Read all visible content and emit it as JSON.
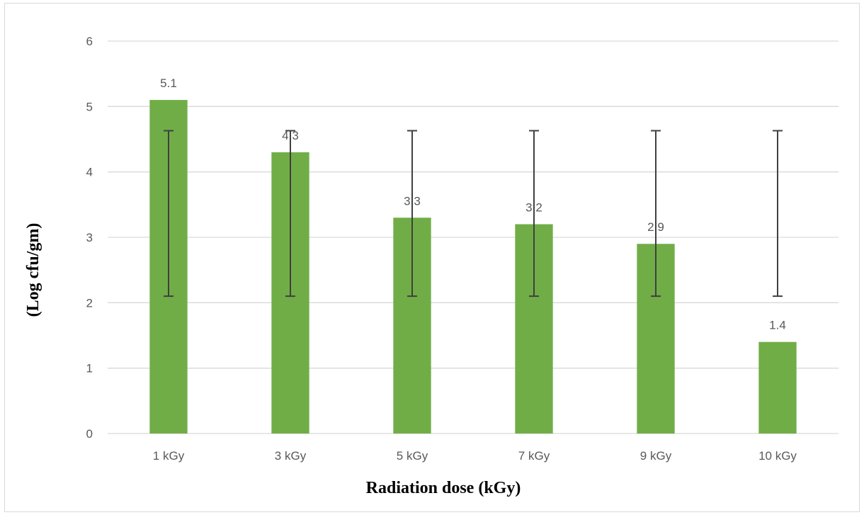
{
  "chart_data": {
    "type": "bar",
    "title": "",
    "xlabel": "Radiation dose (kGy)",
    "ylabel": "(Log cfu/gm)",
    "categories": [
      "1 kGy",
      "3 kGy",
      "5 kGy",
      "7 kGy",
      "9 kGy",
      "10 kGy"
    ],
    "values": [
      5.1,
      4.3,
      3.3,
      3.2,
      2.9,
      1.4
    ],
    "data_labels": [
      "5.1",
      "4.3",
      "3.3",
      "3.2",
      "2.9",
      "1.4"
    ],
    "error_bars": [
      {
        "low": 2.1,
        "high": 4.63
      },
      {
        "low": 2.1,
        "high": 4.63
      },
      {
        "low": 2.1,
        "high": 4.63
      },
      {
        "low": 2.1,
        "high": 4.63
      },
      {
        "low": 2.1,
        "high": 4.63
      },
      {
        "low": 2.1,
        "high": 4.63
      }
    ],
    "ylim": [
      0,
      6
    ],
    "yticks": [
      0,
      1,
      2,
      3,
      4,
      5,
      6
    ],
    "grid": true,
    "legend": "none",
    "bar_color": "#70ad47",
    "error_bar_color": "#404040",
    "grid_color": "#d9d9d9"
  }
}
